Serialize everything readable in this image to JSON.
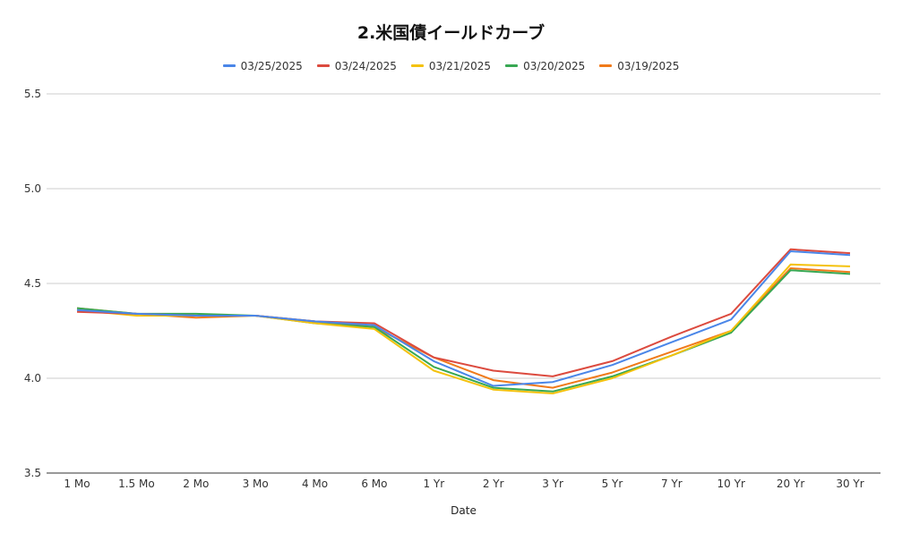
{
  "chart_data": {
    "type": "line",
    "title": "2.米国債イールドカーブ",
    "xlabel": "Date",
    "ylabel": "",
    "ylim": [
      3.5,
      5.5
    ],
    "yticks": [
      "3.5",
      "4.0",
      "4.5",
      "5.0",
      "5.5"
    ],
    "grid": true,
    "legend_position": "top",
    "categories": [
      "1 Mo",
      "1.5 Mo",
      "2 Mo",
      "3 Mo",
      "4 Mo",
      "6 Mo",
      "1 Yr",
      "2 Yr",
      "3 Yr",
      "5 Yr",
      "7 Yr",
      "10 Yr",
      "20 Yr",
      "30 Yr"
    ],
    "series": [
      {
        "name": "03/25/2025",
        "color": "#4a86e8",
        "values": [
          4.36,
          4.34,
          4.33,
          4.33,
          4.3,
          4.28,
          4.09,
          3.96,
          3.98,
          4.07,
          4.19,
          4.31,
          4.67,
          4.65
        ]
      },
      {
        "name": "03/24/2025",
        "color": "#dc4b3f",
        "values": [
          4.35,
          4.34,
          4.33,
          4.33,
          4.3,
          4.29,
          4.11,
          4.04,
          4.01,
          4.09,
          4.22,
          4.34,
          4.68,
          4.66
        ]
      },
      {
        "name": "03/21/2025",
        "color": "#f4c20d",
        "values": [
          4.36,
          4.33,
          4.33,
          4.33,
          4.29,
          4.26,
          4.04,
          3.94,
          3.92,
          4.0,
          4.12,
          4.25,
          4.6,
          4.59
        ]
      },
      {
        "name": "03/20/2025",
        "color": "#38a853",
        "values": [
          4.37,
          4.34,
          4.34,
          4.33,
          4.29,
          4.27,
          4.06,
          3.95,
          3.93,
          4.01,
          4.12,
          4.24,
          4.57,
          4.55
        ]
      },
      {
        "name": "03/19/2025",
        "color": "#f07a1a",
        "values": [
          4.37,
          4.34,
          4.32,
          4.33,
          4.3,
          4.27,
          4.11,
          3.99,
          3.95,
          4.03,
          4.14,
          4.25,
          4.58,
          4.56
        ]
      }
    ]
  }
}
